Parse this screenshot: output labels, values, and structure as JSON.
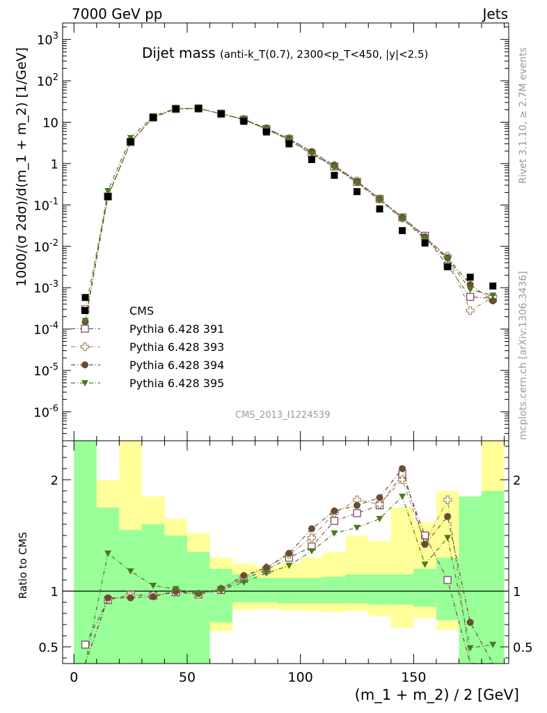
{
  "header": {
    "left": "7000 GeV pp",
    "right": "Jets"
  },
  "side_labels": {
    "rivet": "Rivet 3.1.10, ≥ 2.7M events",
    "mcplots": "mcplots.cern.ch [arXiv:1306.3436]"
  },
  "watermark": "CMS_2013_I1224539",
  "chart_data": [
    {
      "type": "scatter",
      "title": "Dijet mass",
      "title_detail": "(anti-k_T(0.7), 2300<p_T<450, |y|<2.5)",
      "ylabel": "1000/(σ 2dσ)/d(m_1 + m_2) [1/GeV]",
      "xlabel": "(m_1 + m_2) / 2 [GeV]",
      "xlim": [
        -5,
        192
      ],
      "ylim": [
        2e-07,
        2500
      ],
      "yscale": "log",
      "y_tick_labels": [
        "10^-6",
        "10^-5",
        "10^-4",
        "10^-3",
        "10^-2",
        "10^-1",
        "1",
        "10",
        "10^2",
        "10^3"
      ],
      "x": [
        5,
        15,
        25,
        35,
        45,
        55,
        65,
        75,
        85,
        95,
        105,
        115,
        125,
        135,
        145,
        155,
        165,
        175,
        185
      ],
      "legend_position": "left-middle",
      "series": [
        {
          "name": "CMS",
          "color": "#000000",
          "marker": "square-filled",
          "values": [
            0.00058,
            0.16,
            3.4,
            13,
            21,
            21.5,
            16,
            10.5,
            5.8,
            3.0,
            1.25,
            0.52,
            0.21,
            0.08,
            0.024,
            0.012,
            0.0032,
            0.0018,
            0.0011
          ]
        },
        {
          "name": "Pythia 6.428 391",
          "color": "#7a4a62",
          "marker": "square-open",
          "values": [
            0.0003,
            0.16,
            3.3,
            13,
            21,
            21.5,
            16,
            11.5,
            6.8,
            3.9,
            1.75,
            0.85,
            0.36,
            0.14,
            0.05,
            0.018,
            0.0034,
            0.0006,
            0.00055
          ]
        },
        {
          "name": "Pythia 6.428 393",
          "color": "#a0905a",
          "marker": "cross-open",
          "values": [
            0.0003,
            0.17,
            3.4,
            13,
            21,
            21.5,
            16,
            11.8,
            7.0,
            4.0,
            1.85,
            0.9,
            0.38,
            0.14,
            0.048,
            0.016,
            0.0058,
            0.00028,
            0.0006
          ]
        },
        {
          "name": "Pythia 6.428 394",
          "color": "#6b4c33",
          "marker": "circle-filled",
          "values": [
            0.00015,
            0.16,
            3.3,
            13,
            21,
            21.5,
            16,
            11.8,
            7.1,
            4.0,
            1.95,
            0.9,
            0.37,
            0.14,
            0.05,
            0.017,
            0.0053,
            0.0012,
            0.00048
          ]
        },
        {
          "name": "Pythia 6.428 395",
          "color": "#4a7a1e",
          "marker": "triangle-down-filled",
          "values": [
            0.00016,
            0.22,
            4.2,
            14,
            21.5,
            21.5,
            16,
            11.5,
            6.8,
            3.7,
            1.7,
            0.82,
            0.34,
            0.13,
            0.046,
            0.015,
            0.005,
            0.0009,
            0.00065
          ]
        }
      ]
    },
    {
      "type": "scatter",
      "ylabel": "Ratio to CMS",
      "xlabel": "(m_1 + m_2) / 2 [GeV]",
      "xlim": [
        -5,
        192
      ],
      "ylim": [
        0.35,
        2.35
      ],
      "x_tick_labels": [
        "0",
        "50",
        "100",
        "150"
      ],
      "y_tick_labels": [
        "0.5",
        "1",
        "2"
      ],
      "bands": {
        "x_edges": [
          0,
          10,
          20,
          30,
          40,
          50,
          60,
          70,
          80,
          90,
          100,
          110,
          120,
          130,
          140,
          150,
          160,
          170,
          180,
          190
        ],
        "yellow_low": [
          0.35,
          0.35,
          0.35,
          0.35,
          0.35,
          0.35,
          0.64,
          0.83,
          0.84,
          0.83,
          0.82,
          0.81,
          0.82,
          0.78,
          0.67,
          0.76,
          0.65,
          0.35,
          0.35
        ],
        "yellow_high": [
          2.35,
          2.0,
          2.35,
          1.85,
          1.65,
          1.52,
          1.3,
          1.25,
          1.22,
          1.25,
          1.3,
          1.35,
          1.5,
          1.45,
          1.75,
          1.62,
          1.9,
          1.85,
          2.35
        ],
        "green_low": [
          0.35,
          0.35,
          0.35,
          0.35,
          0.35,
          0.35,
          0.72,
          0.9,
          0.9,
          0.89,
          0.89,
          0.89,
          0.89,
          0.88,
          0.88,
          0.86,
          0.74,
          0.35,
          0.35
        ],
        "green_high": [
          2.35,
          1.75,
          1.55,
          1.6,
          1.5,
          1.35,
          1.2,
          1.15,
          1.12,
          1.12,
          1.12,
          1.13,
          1.15,
          1.15,
          1.15,
          1.2,
          1.3,
          1.85,
          1.9
        ]
      },
      "series": [
        {
          "name": "Pythia 6.428 391",
          "values": [
            0.52,
            0.92,
            0.97,
            0.96,
            0.99,
            0.97,
            1.01,
            1.11,
            1.19,
            1.3,
            1.4,
            1.63,
            1.7,
            1.77,
            2.05,
            1.5,
            1.1,
            0.35,
            0.35
          ]
        },
        {
          "name": "Pythia 6.428 393",
          "values": [
            0.3,
            0.93,
            0.96,
            0.96,
            1.0,
            0.97,
            1.02,
            1.13,
            1.21,
            1.33,
            1.48,
            1.7,
            1.82,
            1.78,
            2.0,
            1.43,
            1.82,
            0.35,
            0.35
          ]
        },
        {
          "name": "Pythia 6.428 394",
          "values": [
            0.3,
            0.94,
            0.94,
            0.95,
            1.0,
            0.98,
            1.02,
            1.14,
            1.21,
            1.34,
            1.56,
            1.72,
            1.77,
            1.84,
            2.1,
            1.42,
            1.67,
            0.72,
            0.35
          ]
        },
        {
          "name": "Pythia 6.428 395",
          "values": [
            0.3,
            1.34,
            1.18,
            1.05,
            1.02,
            0.98,
            1.01,
            1.08,
            1.16,
            1.23,
            1.36,
            1.52,
            1.57,
            1.65,
            1.85,
            1.24,
            1.48,
            0.49,
            0.52
          ]
        }
      ]
    }
  ]
}
